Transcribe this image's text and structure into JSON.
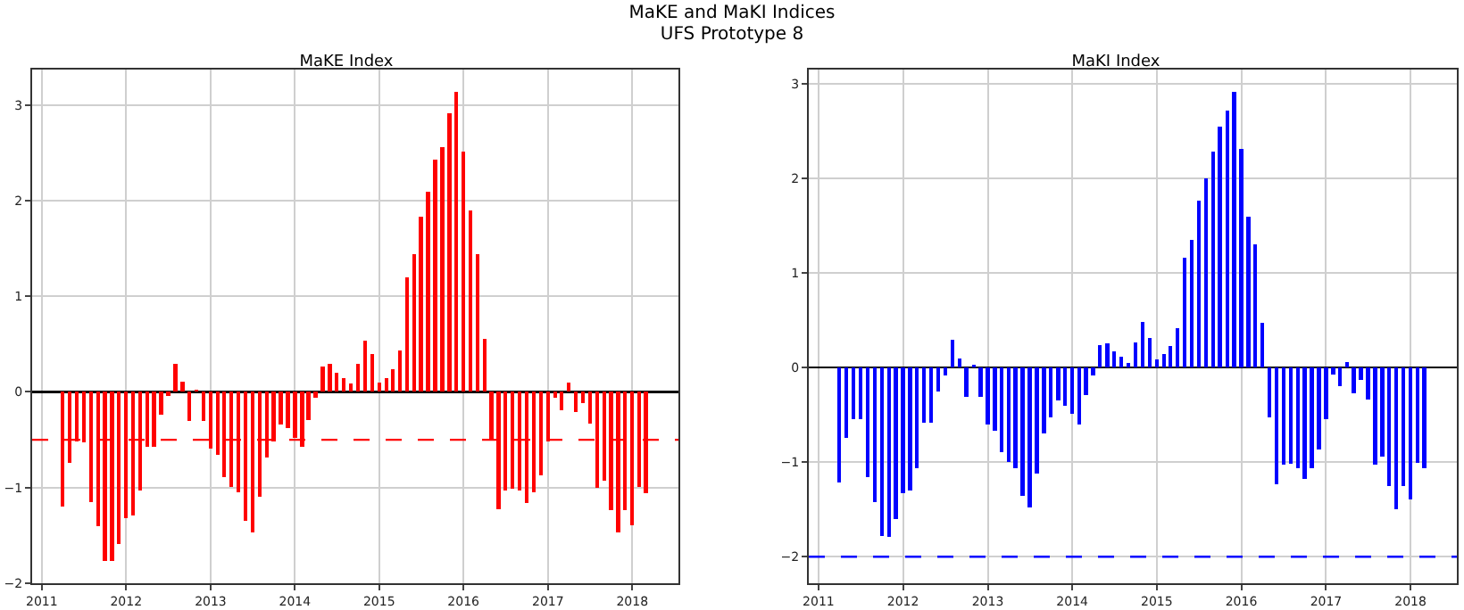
{
  "chart_data": [
    {
      "type": "bar",
      "title": "MaKE Index",
      "annotations": [
        "MaKE and MaKI Indices",
        "UFS Prototype 8"
      ],
      "x": [
        "2011-04",
        "2011-05",
        "2011-06",
        "2011-07",
        "2011-08",
        "2011-09",
        "2011-10",
        "2011-11",
        "2011-12",
        "2012-01",
        "2012-02",
        "2012-03",
        "2012-04",
        "2012-05",
        "2012-06",
        "2012-07",
        "2012-08",
        "2012-09",
        "2012-10",
        "2012-11",
        "2012-12",
        "2013-01",
        "2013-02",
        "2013-03",
        "2013-04",
        "2013-05",
        "2013-06",
        "2013-07",
        "2013-08",
        "2013-09",
        "2013-10",
        "2013-11",
        "2013-12",
        "2014-01",
        "2014-02",
        "2014-03",
        "2014-04",
        "2014-05",
        "2014-06",
        "2014-07",
        "2014-08",
        "2014-09",
        "2014-10",
        "2014-11",
        "2014-12",
        "2015-01",
        "2015-02",
        "2015-03",
        "2015-04",
        "2015-05",
        "2015-06",
        "2015-07",
        "2015-08",
        "2015-09",
        "2015-10",
        "2015-11",
        "2015-12",
        "2016-01",
        "2016-02",
        "2016-03",
        "2016-04",
        "2016-05",
        "2016-06",
        "2016-07",
        "2016-08",
        "2016-09",
        "2016-10",
        "2016-11",
        "2016-12",
        "2017-01",
        "2017-02",
        "2017-03",
        "2017-04",
        "2017-05",
        "2017-06",
        "2017-07",
        "2017-08",
        "2017-09",
        "2017-10",
        "2017-11",
        "2017-12",
        "2018-01",
        "2018-02",
        "2018-03"
      ],
      "values": [
        -1.2,
        -0.74,
        -0.52,
        -0.53,
        -1.15,
        -1.4,
        -1.77,
        -1.77,
        -1.59,
        -1.32,
        -1.29,
        -1.03,
        -0.57,
        -0.57,
        -0.24,
        -0.04,
        0.29,
        0.11,
        -0.3,
        0.02,
        -0.3,
        -0.59,
        -0.66,
        -0.89,
        -0.99,
        -1.05,
        -1.35,
        -1.47,
        -1.1,
        -0.69,
        -0.52,
        -0.34,
        -0.38,
        -0.48,
        -0.57,
        -0.29,
        -0.06,
        0.27,
        0.29,
        0.2,
        0.14,
        0.09,
        0.29,
        0.54,
        0.4,
        0.1,
        0.14,
        0.24,
        0.43,
        1.2,
        1.44,
        1.83,
        2.09,
        2.43,
        2.56,
        2.91,
        3.14,
        2.51,
        1.9,
        1.44,
        0.55,
        -0.49,
        -1.23,
        -1.03,
        -1.01,
        -1.03,
        -1.16,
        -1.05,
        -0.87,
        -0.52,
        -0.06,
        -0.19,
        0.1,
        -0.21,
        -0.12,
        -0.33,
        -1.0,
        -0.93,
        -1.24,
        -1.47,
        -1.24,
        -1.39,
        -0.99,
        -1.06
      ],
      "color": "#ff0000",
      "xlim": [
        "2010-11-20",
        "2018-07-20"
      ],
      "xticks": [
        "2011",
        "2012",
        "2013",
        "2014",
        "2015",
        "2016",
        "2017",
        "2018"
      ],
      "ylim": [
        -2,
        3.37
      ],
      "yticks": [
        -2,
        -1,
        0,
        1,
        2,
        3
      ],
      "grid": true,
      "ref_lines": [
        {
          "axis": "y",
          "value": -0.5,
          "color": "#ff0000",
          "line_style": "dashed"
        }
      ]
    },
    {
      "type": "bar",
      "title": "MaKI Index",
      "x": [
        "2011-04",
        "2011-05",
        "2011-06",
        "2011-07",
        "2011-08",
        "2011-09",
        "2011-10",
        "2011-11",
        "2011-12",
        "2012-01",
        "2012-02",
        "2012-03",
        "2012-04",
        "2012-05",
        "2012-06",
        "2012-07",
        "2012-08",
        "2012-09",
        "2012-10",
        "2012-11",
        "2012-12",
        "2013-01",
        "2013-02",
        "2013-03",
        "2013-04",
        "2013-05",
        "2013-06",
        "2013-07",
        "2013-08",
        "2013-09",
        "2013-10",
        "2013-11",
        "2013-12",
        "2014-01",
        "2014-02",
        "2014-03",
        "2014-04",
        "2014-05",
        "2014-06",
        "2014-07",
        "2014-08",
        "2014-09",
        "2014-10",
        "2014-11",
        "2014-12",
        "2015-01",
        "2015-02",
        "2015-03",
        "2015-04",
        "2015-05",
        "2015-06",
        "2015-07",
        "2015-08",
        "2015-09",
        "2015-10",
        "2015-11",
        "2015-12",
        "2016-01",
        "2016-02",
        "2016-03",
        "2016-04",
        "2016-05",
        "2016-06",
        "2016-07",
        "2016-08",
        "2016-09",
        "2016-10",
        "2016-11",
        "2016-12",
        "2017-01",
        "2017-02",
        "2017-03",
        "2017-04",
        "2017-05",
        "2017-06",
        "2017-07",
        "2017-08",
        "2017-09",
        "2017-10",
        "2017-11",
        "2017-12",
        "2018-01",
        "2018-02",
        "2018-03"
      ],
      "values": [
        -1.21,
        -0.74,
        -0.55,
        -0.55,
        -1.16,
        -1.42,
        -1.78,
        -1.79,
        -1.6,
        -1.33,
        -1.3,
        -1.06,
        -0.58,
        -0.58,
        -0.25,
        -0.08,
        0.29,
        0.1,
        -0.31,
        0.03,
        -0.31,
        -0.6,
        -0.67,
        -0.89,
        -1.0,
        -1.06,
        -1.36,
        -1.48,
        -1.12,
        -0.7,
        -0.53,
        -0.35,
        -0.4,
        -0.49,
        -0.6,
        -0.29,
        -0.08,
        0.24,
        0.26,
        0.17,
        0.11,
        0.05,
        0.27,
        0.48,
        0.31,
        0.09,
        0.14,
        0.23,
        0.42,
        1.16,
        1.35,
        1.76,
        2.0,
        2.28,
        2.55,
        2.72,
        2.91,
        2.31,
        1.59,
        1.3,
        0.47,
        -0.53,
        -1.23,
        -1.03,
        -1.02,
        -1.06,
        -1.18,
        -1.06,
        -0.87,
        -0.55,
        -0.07,
        -0.2,
        0.06,
        -0.27,
        -0.13,
        -0.34,
        -1.03,
        -0.94,
        -1.25,
        -1.5,
        -1.25,
        -1.39,
        -1.01,
        -1.06
      ],
      "color": "#0000ff",
      "xlim": [
        "2010-11-20",
        "2018-07-20"
      ],
      "xticks": [
        "2011",
        "2012",
        "2013",
        "2014",
        "2015",
        "2016",
        "2017",
        "2018"
      ],
      "ylim": [
        -2.28,
        3.15
      ],
      "yticks": [
        -2,
        -1,
        0,
        1,
        2,
        3
      ],
      "grid": true,
      "ref_lines": [
        {
          "axis": "y",
          "value": -2,
          "color": "#0000ff",
          "line_style": "dashed"
        }
      ]
    }
  ]
}
